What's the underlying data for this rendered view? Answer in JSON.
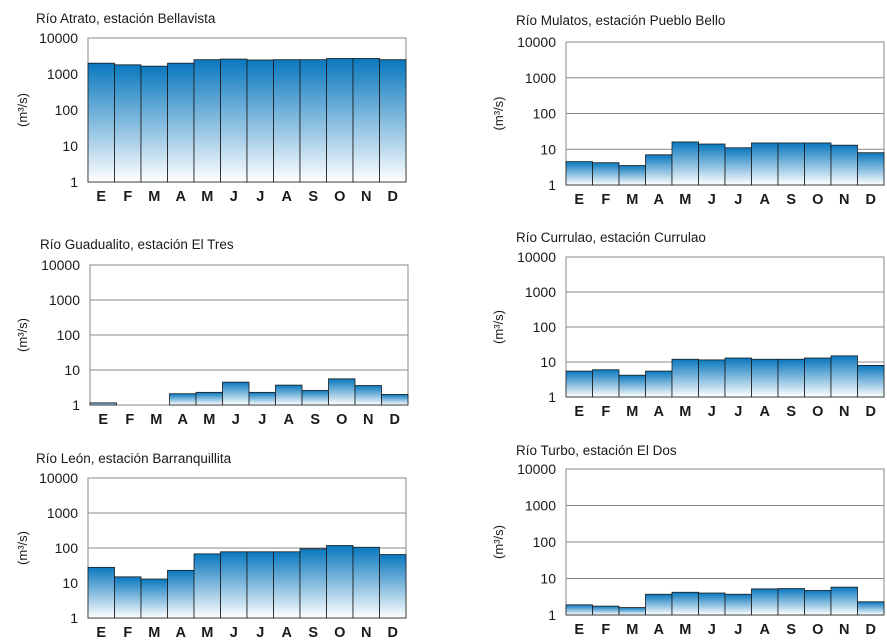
{
  "months": [
    "E",
    "F",
    "M",
    "A",
    "M",
    "J",
    "J",
    "A",
    "S",
    "O",
    "N",
    "D"
  ],
  "yticks": [
    "10000",
    "1000",
    "100",
    "10",
    "1"
  ],
  "ylabel": "(m³/s)",
  "colors": {
    "bar_top": "#0a78be",
    "bar_bottom": "#ffffff",
    "frame": "#8a8a8a",
    "grid": "#8a8a8a",
    "bar_edge": "#1a1a1a"
  },
  "chart_data": [
    {
      "type": "bar",
      "title": "Río Atrato, estación Bellavista",
      "scale": "log",
      "ylim": [
        1,
        10000
      ],
      "categories": [
        "E",
        "F",
        "M",
        "A",
        "M",
        "J",
        "J",
        "A",
        "S",
        "O",
        "N",
        "D"
      ],
      "values": [
        2000,
        1800,
        1650,
        2000,
        2500,
        2600,
        2450,
        2500,
        2500,
        2700,
        2700,
        2500
      ]
    },
    {
      "type": "bar",
      "title": "Río Mulatos, estación Pueblo Bello",
      "scale": "log",
      "ylim": [
        1,
        10000
      ],
      "categories": [
        "E",
        "F",
        "M",
        "A",
        "M",
        "J",
        "J",
        "A",
        "S",
        "O",
        "N",
        "D"
      ],
      "values": [
        4.5,
        4.2,
        3.5,
        7,
        16,
        14,
        11,
        15,
        15,
        15,
        13,
        8
      ]
    },
    {
      "type": "bar",
      "title": "Río Guadualito, estación El Tres",
      "scale": "log",
      "ylim": [
        1,
        10000
      ],
      "categories": [
        "E",
        "F",
        "M",
        "A",
        "M",
        "J",
        "J",
        "A",
        "S",
        "O",
        "N",
        "D"
      ],
      "values": [
        1.15,
        0,
        0,
        2.1,
        2.3,
        4.5,
        2.3,
        3.7,
        2.6,
        5.6,
        3.6,
        2
      ]
    },
    {
      "type": "bar",
      "title": "Río Currulao, estación Currulao",
      "scale": "log",
      "ylim": [
        1,
        10000
      ],
      "categories": [
        "E",
        "F",
        "M",
        "A",
        "M",
        "J",
        "J",
        "A",
        "S",
        "O",
        "N",
        "D"
      ],
      "values": [
        5.5,
        6,
        4.2,
        5.5,
        12,
        11.5,
        13,
        12,
        12,
        13,
        15,
        8
      ]
    },
    {
      "type": "bar",
      "title": "Río León, estación Barranquillita",
      "scale": "log",
      "ylim": [
        1,
        10000
      ],
      "categories": [
        "E",
        "F",
        "M",
        "A",
        "M",
        "J",
        "J",
        "A",
        "S",
        "O",
        "N",
        "D"
      ],
      "values": [
        28,
        15,
        13,
        23,
        68,
        78,
        78,
        78,
        95,
        118,
        105,
        65
      ]
    },
    {
      "type": "bar",
      "title": "Río Turbo, estación El Dos",
      "scale": "log",
      "ylim": [
        1,
        10000
      ],
      "categories": [
        "E",
        "F",
        "M",
        "A",
        "M",
        "J",
        "J",
        "A",
        "S",
        "O",
        "N",
        "D"
      ],
      "values": [
        1.9,
        1.75,
        1.6,
        3.7,
        4.2,
        4,
        3.7,
        5.2,
        5.3,
        4.7,
        5.8,
        2.3
      ]
    }
  ]
}
